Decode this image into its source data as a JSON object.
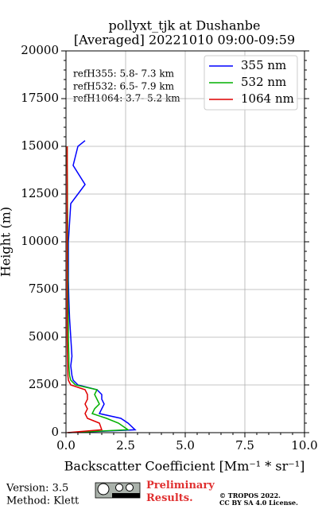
{
  "chart_data": {
    "type": "line",
    "title": "pollyxt_tjk at Dushanbe",
    "subtitle": "[Averaged] 20221010 09:00-09:59",
    "x_label": "Backscatter Coefficient [Mm⁻¹ * sr⁻¹]",
    "y_label": "Height (m)",
    "y": [
      0,
      150,
      500,
      750,
      1000,
      1250,
      1500,
      1750,
      2000,
      2250,
      2500,
      2750,
      3000,
      3500,
      4000,
      5000,
      6000,
      7000,
      8000,
      9000,
      10000,
      11000,
      12000,
      12500,
      13000,
      14000,
      14500,
      15000,
      15300
    ],
    "series": [
      {
        "name": "355 nm",
        "color": "#0000ff",
        "values": [
          0.1,
          2.9,
          2.6,
          2.3,
          1.4,
          1.5,
          1.6,
          1.5,
          1.5,
          1.3,
          0.5,
          0.3,
          0.25,
          0.2,
          0.25,
          0.2,
          0.15,
          0.12,
          0.1,
          0.1,
          0.1,
          0.15,
          0.2,
          0.5,
          0.8,
          0.3,
          0.4,
          0.5,
          0.8
        ]
      },
      {
        "name": "532 nm",
        "color": "#00b000",
        "values": [
          0.1,
          2.6,
          2.2,
          1.7,
          1.1,
          1.2,
          1.4,
          1.3,
          1.2,
          1.3,
          0.4,
          0.2,
          0.15,
          0.12,
          0.12,
          0.1,
          0.1,
          0.08,
          0.08,
          0.07,
          0.07,
          0.07,
          0.06,
          0.06,
          0.06,
          0.05,
          0.05,
          0.05,
          null
        ]
      },
      {
        "name": "1064 nm",
        "color": "#e00000",
        "values": [
          0.05,
          1.5,
          1.4,
          0.9,
          0.8,
          0.9,
          0.8,
          0.9,
          0.9,
          0.8,
          0.2,
          0.1,
          0.08,
          0.07,
          0.06,
          0.05,
          0.05,
          0.05,
          0.05,
          0.05,
          0.05,
          0.05,
          0.05,
          0.05,
          0.05,
          0.05,
          0.05,
          0.05,
          null
        ]
      }
    ],
    "xlim": [
      0,
      10
    ],
    "ylim": [
      0,
      20000
    ],
    "xticks": [
      {
        "value": 0,
        "label": "0.0"
      },
      {
        "value": 2.5,
        "label": "2.5"
      },
      {
        "value": 5,
        "label": "5.0"
      },
      {
        "value": 7.5,
        "label": "7.5"
      },
      {
        "value": 10,
        "label": "10.0"
      }
    ],
    "yticks": [
      0,
      2500,
      5000,
      7500,
      10000,
      12500,
      15000,
      17500,
      20000
    ],
    "grid": true,
    "legend": "upper right",
    "annotations": [
      "refH355:  5.8- 7.3 km",
      "refH532:  6.5- 7.9 km",
      "refH1064:  3.7- 5.2 km"
    ],
    "footer": {
      "version": "Version: 3.5",
      "method": "Method: Klett",
      "status": "Preliminary Results.",
      "copyright": "© TROPOS 2022.",
      "license": "CC BY SA 4.0 License."
    }
  }
}
